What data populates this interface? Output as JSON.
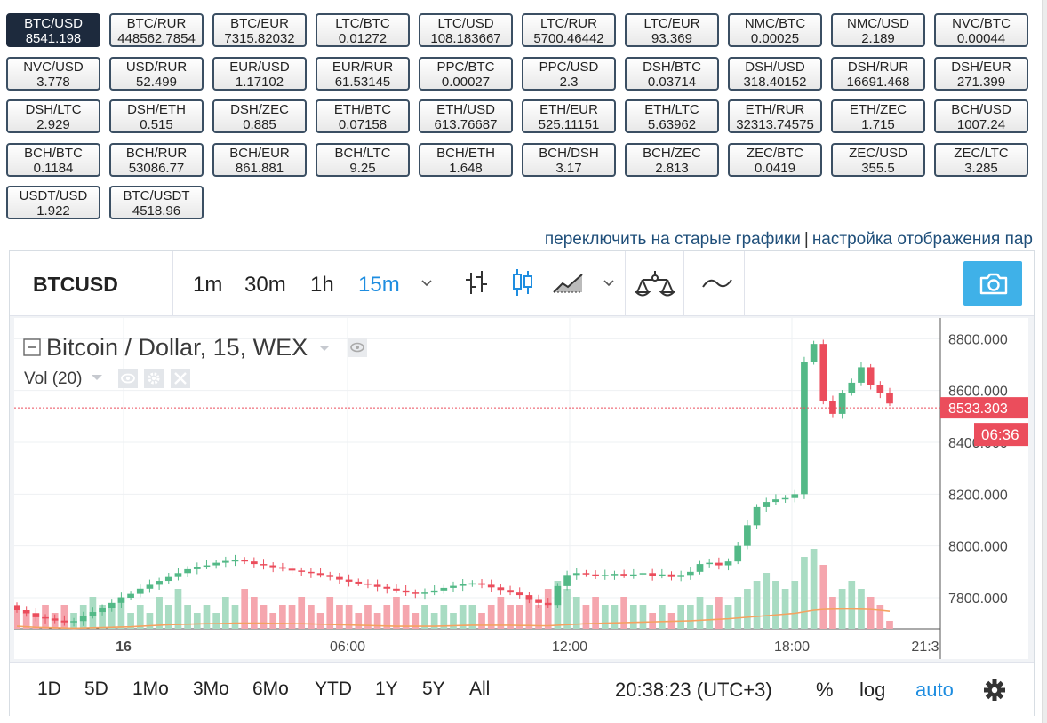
{
  "pairs": [
    {
      "name": "BTC/USD",
      "value": "8541.198",
      "active": true
    },
    {
      "name": "BTC/RUR",
      "value": "448562.7854"
    },
    {
      "name": "BTC/EUR",
      "value": "7315.82032"
    },
    {
      "name": "LTC/BTC",
      "value": "0.01272"
    },
    {
      "name": "LTC/USD",
      "value": "108.183667"
    },
    {
      "name": "LTC/RUR",
      "value": "5700.46442"
    },
    {
      "name": "LTC/EUR",
      "value": "93.369"
    },
    {
      "name": "NMC/BTC",
      "value": "0.00025"
    },
    {
      "name": "NMC/USD",
      "value": "2.189"
    },
    {
      "name": "NVC/BTC",
      "value": "0.00044"
    },
    {
      "name": "NVC/USD",
      "value": "3.778"
    },
    {
      "name": "USD/RUR",
      "value": "52.499"
    },
    {
      "name": "EUR/USD",
      "value": "1.17102"
    },
    {
      "name": "EUR/RUR",
      "value": "61.53145"
    },
    {
      "name": "PPC/BTC",
      "value": "0.00027"
    },
    {
      "name": "PPC/USD",
      "value": "2.3"
    },
    {
      "name": "DSH/BTC",
      "value": "0.03714"
    },
    {
      "name": "DSH/USD",
      "value": "318.40152"
    },
    {
      "name": "DSH/RUR",
      "value": "16691.468"
    },
    {
      "name": "DSH/EUR",
      "value": "271.399"
    },
    {
      "name": "DSH/LTC",
      "value": "2.929"
    },
    {
      "name": "DSH/ETH",
      "value": "0.515"
    },
    {
      "name": "DSH/ZEC",
      "value": "0.885"
    },
    {
      "name": "ETH/BTC",
      "value": "0.07158"
    },
    {
      "name": "ETH/USD",
      "value": "613.76687"
    },
    {
      "name": "ETH/EUR",
      "value": "525.11151"
    },
    {
      "name": "ETH/LTC",
      "value": "5.63962"
    },
    {
      "name": "ETH/RUR",
      "value": "32313.74575"
    },
    {
      "name": "ETH/ZEC",
      "value": "1.715"
    },
    {
      "name": "BCH/USD",
      "value": "1007.24"
    },
    {
      "name": "BCH/BTC",
      "value": "0.1184"
    },
    {
      "name": "BCH/RUR",
      "value": "53086.77"
    },
    {
      "name": "BCH/EUR",
      "value": "861.881"
    },
    {
      "name": "BCH/LTC",
      "value": "9.25"
    },
    {
      "name": "BCH/ETH",
      "value": "1.648"
    },
    {
      "name": "BCH/DSH",
      "value": "3.17"
    },
    {
      "name": "BCH/ZEC",
      "value": "2.813"
    },
    {
      "name": "ZEC/BTC",
      "value": "0.0419"
    },
    {
      "name": "ZEC/USD",
      "value": "355.5"
    },
    {
      "name": "ZEC/LTC",
      "value": "3.285"
    },
    {
      "name": "USDT/USD",
      "value": "1.922"
    },
    {
      "name": "BTC/USDT",
      "value": "4518.96"
    }
  ],
  "links": {
    "old_charts": "переключить на старые графики",
    "separator": "|",
    "display_settings": "настройка отображения пар"
  },
  "toolbar": {
    "symbol": "BTCUSD",
    "intervals": [
      {
        "label": "1m"
      },
      {
        "label": "30m"
      },
      {
        "label": "1h"
      },
      {
        "label": "15m",
        "active": true
      }
    ],
    "icons": [
      "bar-style-icon",
      "candle-style-icon",
      "area-style-icon",
      "chevron-down-icon",
      "indicators-icon",
      "compare-icon",
      "camera-icon"
    ]
  },
  "legend": {
    "title": "Bitcoin / Dollar, 15, WEX",
    "volume": "Vol (20)"
  },
  "price_label": "8533.303",
  "countdown": "06:36",
  "bottom": {
    "ranges": [
      "1D",
      "5D",
      "1Mo",
      "3Mo",
      "6Mo",
      "YTD",
      "1Y",
      "5Y",
      "All"
    ],
    "time": "20:38:23 (UTC+3)",
    "percent": "%",
    "log": "log",
    "auto": "auto"
  },
  "colors": {
    "up": "#53b987",
    "down": "#eb4d5c",
    "vol_up": "#a9dcc3",
    "vol_down": "#f5a6ae",
    "ma": "#f5a260",
    "accent": "#1e8de0"
  },
  "chart_data": {
    "type": "candlestick",
    "title": "Bitcoin / Dollar, 15, WEX",
    "ylim": [
      7680,
      8880
    ],
    "y_ticks": [
      7800,
      8000,
      8200,
      8400,
      8600,
      8800
    ],
    "y_tick_labels": [
      "7800.000",
      "8000.000",
      "8200.000",
      "8400.000",
      "8600.000",
      "8800.000"
    ],
    "x_ticks": [
      "16",
      "06:00",
      "12:00",
      "18:00",
      "21:3"
    ],
    "last_price": 8533.303,
    "closes": [
      7752,
      7740,
      7725,
      7720,
      7712,
      7705,
      7710,
      7730,
      7745,
      7762,
      7780,
      7800,
      7815,
      7835,
      7850,
      7865,
      7880,
      7895,
      7910,
      7920,
      7925,
      7935,
      7942,
      7945,
      7940,
      7930,
      7925,
      7918,
      7912,
      7905,
      7900,
      7895,
      7888,
      7880,
      7870,
      7862,
      7855,
      7850,
      7842,
      7835,
      7828,
      7820,
      7815,
      7820,
      7828,
      7838,
      7846,
      7852,
      7856,
      7850,
      7840,
      7830,
      7820,
      7810,
      7795,
      7780,
      7772,
      7845,
      7888,
      7895,
      7890,
      7885,
      7888,
      7892,
      7886,
      7890,
      7895,
      7885,
      7890,
      7880,
      7888,
      7900,
      7930,
      7935,
      7925,
      7940,
      8000,
      8080,
      8150,
      8170,
      8180,
      8185,
      8200,
      8710,
      8780,
      8560,
      8510,
      8590,
      8630,
      8690,
      8620,
      8590,
      8550
    ],
    "opens": [
      7770,
      7752,
      7740,
      7725,
      7720,
      7712,
      7705,
      7710,
      7730,
      7745,
      7762,
      7780,
      7800,
      7815,
      7835,
      7850,
      7865,
      7880,
      7895,
      7910,
      7920,
      7925,
      7935,
      7942,
      7945,
      7940,
      7930,
      7925,
      7918,
      7912,
      7905,
      7900,
      7895,
      7888,
      7880,
      7870,
      7862,
      7855,
      7850,
      7842,
      7835,
      7828,
      7820,
      7815,
      7820,
      7828,
      7838,
      7846,
      7852,
      7856,
      7850,
      7840,
      7830,
      7820,
      7810,
      7795,
      7780,
      7772,
      7845,
      7888,
      7895,
      7890,
      7885,
      7888,
      7892,
      7886,
      7890,
      7895,
      7885,
      7890,
      7880,
      7888,
      7900,
      7930,
      7935,
      7925,
      7940,
      8000,
      8080,
      8150,
      8170,
      8180,
      8185,
      8200,
      8710,
      8780,
      8560,
      8510,
      8590,
      8630,
      8690,
      8620,
      8590
    ],
    "volumes": [
      3,
      2,
      2,
      3,
      2,
      3,
      2,
      3,
      4,
      3,
      3,
      4,
      2,
      3,
      2,
      4,
      3,
      5,
      3,
      2,
      3,
      2,
      4,
      3,
      5,
      4,
      3,
      2,
      3,
      3,
      4,
      3,
      2,
      4,
      3,
      3,
      2,
      3,
      2,
      3,
      4,
      3,
      2,
      3,
      2,
      3,
      2,
      3,
      3,
      2,
      3,
      4,
      3,
      3,
      4,
      3,
      5,
      6,
      5,
      4,
      3,
      4,
      3,
      3,
      4,
      3,
      3,
      2,
      3,
      2,
      3,
      3,
      4,
      3,
      4,
      3,
      4,
      5,
      6,
      7,
      6,
      5,
      6,
      9,
      10,
      8,
      4,
      5,
      6,
      5,
      4,
      3,
      1
    ],
    "ma": [
      7690,
      7688,
      7686,
      7685,
      7684,
      7683,
      7682,
      7683,
      7684,
      7685,
      7686,
      7687,
      7688,
      7690,
      7692,
      7694,
      7696,
      7697,
      7698,
      7699,
      7700,
      7700,
      7701,
      7702,
      7702,
      7702,
      7702,
      7701,
      7701,
      7700,
      7700,
      7699,
      7698,
      7697,
      7696,
      7695,
      7694,
      7693,
      7692,
      7691,
      7690,
      7690,
      7690,
      7690,
      7690,
      7691,
      7692,
      7693,
      7694,
      7694,
      7694,
      7694,
      7694,
      7693,
      7693,
      7692,
      7692,
      7694,
      7696,
      7698,
      7700,
      7701,
      7702,
      7703,
      7704,
      7705,
      7706,
      7707,
      7708,
      7709,
      7710,
      7711,
      7713,
      7715,
      7717,
      7719,
      7722,
      7725,
      7728,
      7731,
      7734,
      7737,
      7740,
      7746,
      7752,
      7755,
      7756,
      7757,
      7757,
      7756,
      7755,
      7752,
      7748
    ]
  }
}
